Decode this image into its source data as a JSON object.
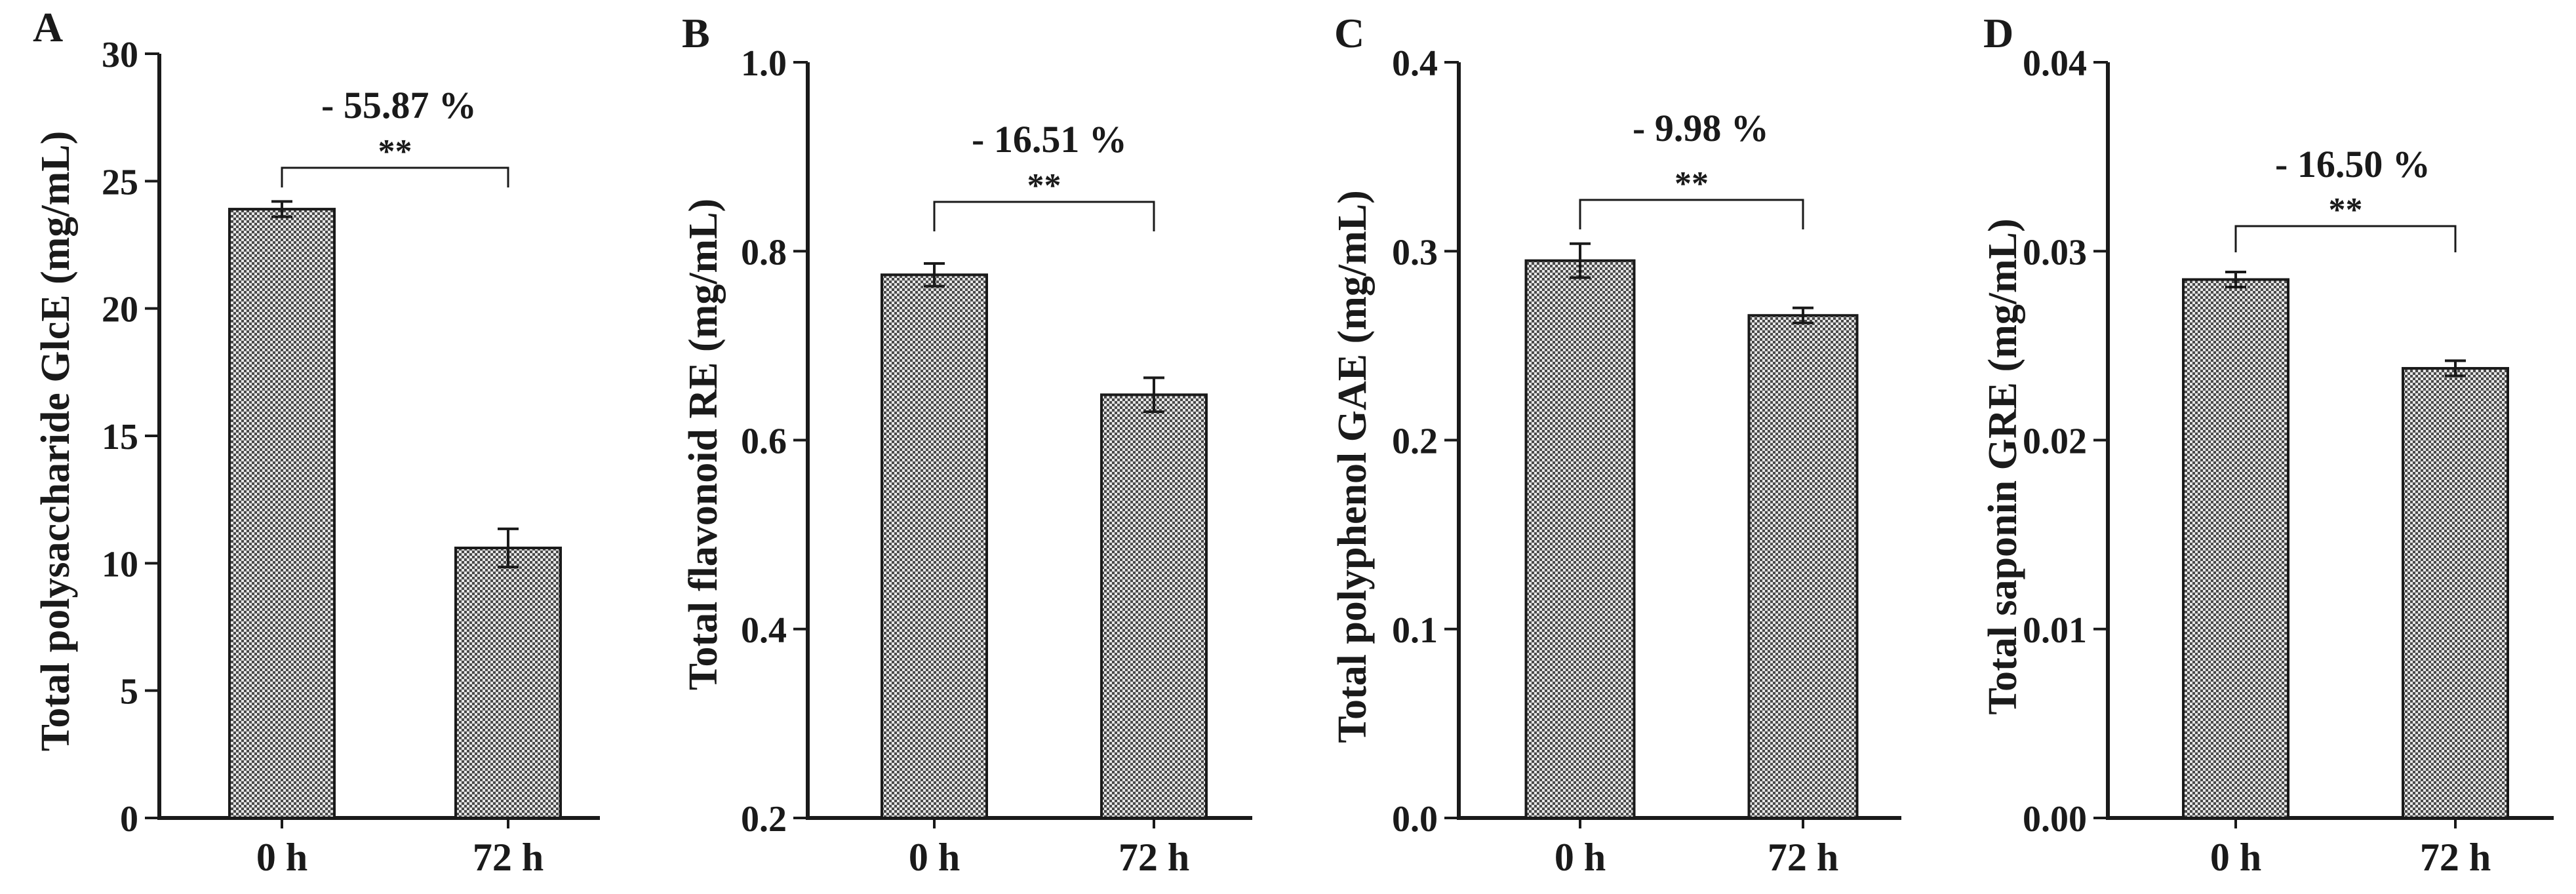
{
  "chart_data": [
    {
      "panel": "A",
      "type": "bar",
      "categories": [
        "0 h",
        "72 h"
      ],
      "values": [
        23.9,
        10.6
      ],
      "errors": [
        0.3,
        0.75
      ],
      "ylabel": "Total polysaccharide GlcE (mg/mL)",
      "ylim": [
        0,
        30
      ],
      "yticks": [
        0,
        5,
        10,
        15,
        20,
        25,
        30
      ],
      "tick_labels": [
        "0",
        "5",
        "10",
        "15",
        "20",
        "25",
        "30"
      ],
      "significance": "**",
      "change_label": "- 55.87 %"
    },
    {
      "panel": "B",
      "type": "bar",
      "categories": [
        "0 h",
        "72 h"
      ],
      "values": [
        0.775,
        0.648
      ],
      "errors": [
        0.012,
        0.018
      ],
      "ylabel": "Total flavonoid  RE (mg/mL)",
      "ylim": [
        0.2,
        1.0
      ],
      "yticks": [
        0.2,
        0.4,
        0.6,
        0.8,
        1.0
      ],
      "tick_labels": [
        "0.2",
        "0.4",
        "0.6",
        "0.8",
        "1.0"
      ],
      "significance": "**",
      "change_label": "- 16.51 %"
    },
    {
      "panel": "C",
      "type": "bar",
      "categories": [
        "0 h",
        "72 h"
      ],
      "values": [
        0.295,
        0.266
      ],
      "errors": [
        0.009,
        0.004
      ],
      "ylabel": "Total polyphenol  GAE (mg/mL)",
      "ylim": [
        0.0,
        0.4
      ],
      "yticks": [
        0.0,
        0.1,
        0.2,
        0.3,
        0.4
      ],
      "tick_labels": [
        "0.0",
        "0.1",
        "0.2",
        "0.3",
        "0.4"
      ],
      "significance": "**",
      "change_label": "- 9.98 %"
    },
    {
      "panel": "D",
      "type": "bar",
      "categories": [
        "0 h",
        "72 h"
      ],
      "values": [
        0.0285,
        0.0238
      ],
      "errors": [
        0.0004,
        0.0004
      ],
      "ylabel": "Total saponin  GRE (mg/mL)",
      "ylim": [
        0.0,
        0.04
      ],
      "yticks": [
        0.0,
        0.01,
        0.02,
        0.03,
        0.04
      ],
      "tick_labels": [
        "0.00",
        "0.01",
        "0.02",
        "0.03",
        "0.04"
      ],
      "significance": "**",
      "change_label": "- 16.50 %"
    }
  ]
}
